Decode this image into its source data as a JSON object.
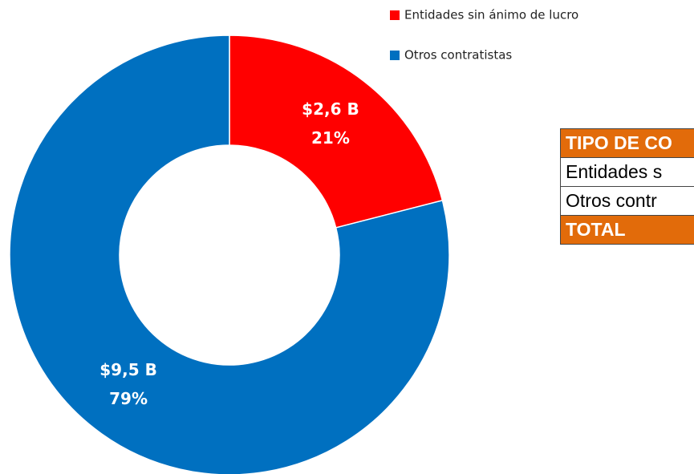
{
  "chart_data": {
    "type": "donut",
    "categories": [
      "Entidades sin ánimo de lucro",
      "Otros contratistas"
    ],
    "values": [
      21,
      79
    ],
    "value_labels": [
      "21%",
      "79%"
    ],
    "amounts": [
      2.6,
      9.5
    ],
    "amount_labels": [
      "$2,6 B",
      "$9,5 B"
    ],
    "colors": [
      "#ff0000",
      "#0070c0"
    ],
    "legend": "top-right"
  },
  "table": {
    "header": "TIPO DE CO",
    "rows": [
      "Entidades s",
      "Otros contr"
    ],
    "total": "TOTAL"
  }
}
